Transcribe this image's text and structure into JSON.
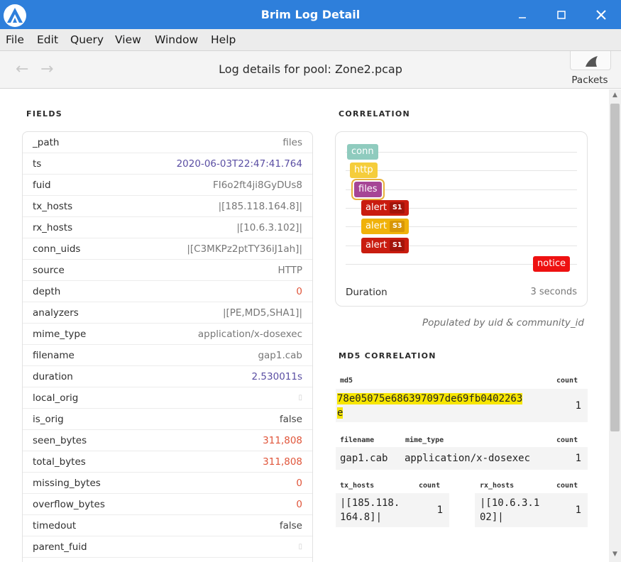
{
  "window": {
    "title": "Brim Log Detail"
  },
  "menu": [
    "File",
    "Edit",
    "Query",
    "View",
    "Window",
    "Help"
  ],
  "toolbar": {
    "title": "Log details for pool: Zone2.pcap",
    "packets_label": "Packets"
  },
  "fields_title": "FIELDS",
  "fields": [
    {
      "name": "_path",
      "value": "files",
      "type": "string"
    },
    {
      "name": "ts",
      "value": "2020-06-03T22:47:41.764",
      "type": "date"
    },
    {
      "name": "fuid",
      "value": "FI6o2ft4ji8GyDUs8",
      "type": "string"
    },
    {
      "name": "tx_hosts",
      "value": "|[185.118.164.8]|",
      "type": "string"
    },
    {
      "name": "rx_hosts",
      "value": "|[10.6.3.102]|",
      "type": "string"
    },
    {
      "name": "conn_uids",
      "value": "|[C3MKPz2ptTY36iJ1ah]|",
      "type": "string"
    },
    {
      "name": "source",
      "value": "HTTP",
      "type": "string"
    },
    {
      "name": "depth",
      "value": "0",
      "type": "num"
    },
    {
      "name": "analyzers",
      "value": "|[PE,MD5,SHA1]|",
      "type": "string"
    },
    {
      "name": "mime_type",
      "value": "application/x-dosexec",
      "type": "string"
    },
    {
      "name": "filename",
      "value": "gap1.cab",
      "type": "string"
    },
    {
      "name": "duration",
      "value": "2.530011s",
      "type": "interval"
    },
    {
      "name": "local_orig",
      "value": "▯",
      "type": "null"
    },
    {
      "name": "is_orig",
      "value": "false",
      "type": "dark"
    },
    {
      "name": "seen_bytes",
      "value": "311,808",
      "type": "num"
    },
    {
      "name": "total_bytes",
      "value": "311,808",
      "type": "num"
    },
    {
      "name": "missing_bytes",
      "value": "0",
      "type": "num"
    },
    {
      "name": "overflow_bytes",
      "value": "0",
      "type": "num"
    },
    {
      "name": "timedout",
      "value": "false",
      "type": "dark"
    },
    {
      "name": "parent_fuid",
      "value": "▯",
      "type": "null"
    }
  ],
  "correlation": {
    "title": "CORRELATION",
    "events": [
      {
        "label": "conn",
        "color": "#8fcbbe",
        "sev": ""
      },
      {
        "label": "http",
        "color": "#f5cd3b",
        "sev": ""
      },
      {
        "label": "files",
        "color": "#a64595",
        "sev": ""
      },
      {
        "label": "alert",
        "color": "#c91c0f",
        "sev": "S1"
      },
      {
        "label": "alert",
        "color": "#f0b20a",
        "sev": "S3"
      },
      {
        "label": "alert",
        "color": "#c91c0f",
        "sev": "S1"
      },
      {
        "label": "notice",
        "color": "#ee1111",
        "sev": ""
      }
    ],
    "duration_label": "Duration",
    "duration_value": "3 seconds",
    "populated_by": "Populated by uid & community_id"
  },
  "md5_correlation": {
    "title": "MD5 CORRELATION",
    "md5_header": "md5",
    "count_header": "count",
    "md5_line1": "78e05075e686397097de69fb0402263",
    "md5_line2": "e",
    "md5_count": "1",
    "filename_header": "filename",
    "mime_header": "mime_type",
    "filename_value": "gap1.cab",
    "mime_value": "application/x-dosexec",
    "file_count": "1",
    "tx_header": "tx_hosts",
    "tx_count_header": "count",
    "tx_line1": "|[185.118.",
    "tx_line2": "164.8]|",
    "tx_count": "1",
    "rx_header": "rx_hosts",
    "rx_count_header": "count",
    "rx_line1": "|[10.6.3.1",
    "rx_line2": "02]|",
    "rx_count": "1"
  },
  "colors": {
    "titlebar": "#2e7fdb",
    "date": "#5a4ea3",
    "number": "#e0553a",
    "highlight": "#f7e600"
  }
}
